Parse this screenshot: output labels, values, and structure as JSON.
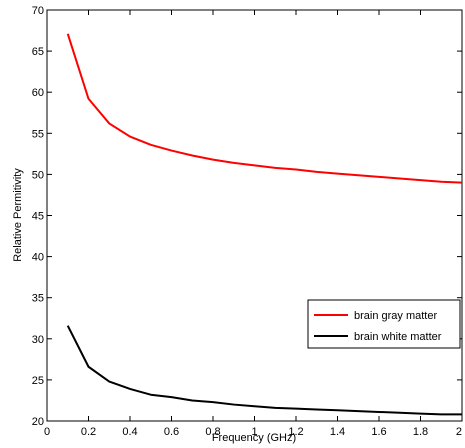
{
  "chart_data": {
    "type": "line",
    "xlabel": "Frequency (GHz)",
    "ylabel": "Relative Permitivity",
    "xlim": [
      0,
      2
    ],
    "ylim": [
      20,
      70
    ],
    "xticks": [
      0,
      0.2,
      0.4,
      0.6,
      0.8,
      1,
      1.2,
      1.4,
      1.6,
      1.8,
      2
    ],
    "xtick_labels": [
      "0",
      "0.2",
      "0.4",
      "0.6",
      "0.8",
      "1",
      "1.2",
      "1.4",
      "1.6",
      "1.8",
      "2"
    ],
    "yticks": [
      20,
      25,
      30,
      35,
      40,
      45,
      50,
      55,
      60,
      65,
      70
    ],
    "ytick_labels": [
      "20",
      "25",
      "30",
      "35",
      "40",
      "45",
      "50",
      "55",
      "60",
      "65",
      "70"
    ],
    "grid": false,
    "legend_position": "lower-right",
    "x": [
      0.1,
      0.2,
      0.3,
      0.4,
      0.5,
      0.6,
      0.7,
      0.8,
      0.9,
      1.0,
      1.1,
      1.2,
      1.3,
      1.4,
      1.5,
      1.6,
      1.7,
      1.8,
      1.9,
      2.0
    ],
    "series": [
      {
        "name": "brain gray matter",
        "color": "#ff0000",
        "values": [
          67.1,
          59.2,
          56.2,
          54.6,
          53.6,
          52.9,
          52.3,
          51.8,
          51.4,
          51.1,
          50.8,
          50.6,
          50.3,
          50.1,
          49.9,
          49.7,
          49.5,
          49.3,
          49.1,
          49.0
        ]
      },
      {
        "name": "brain white matter",
        "color": "#000000",
        "values": [
          31.6,
          26.6,
          24.8,
          23.9,
          23.2,
          22.9,
          22.5,
          22.3,
          22.0,
          21.8,
          21.6,
          21.5,
          21.4,
          21.3,
          21.2,
          21.1,
          21.0,
          20.9,
          20.8,
          20.8
        ]
      }
    ]
  }
}
